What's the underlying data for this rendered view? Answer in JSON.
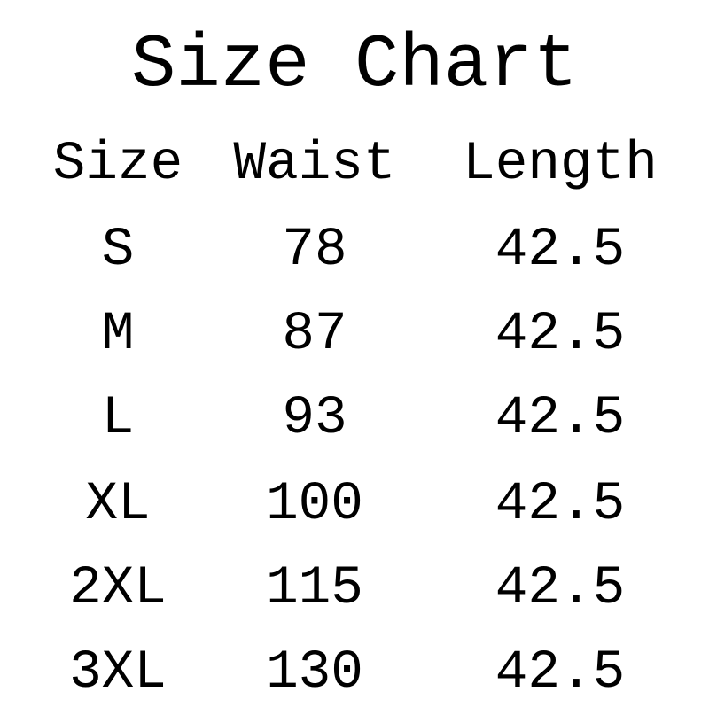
{
  "title": "Size Chart",
  "table": {
    "headers": [
      "Size",
      "Waist",
      "Length"
    ],
    "rows": [
      [
        "S",
        "78",
        "42.5"
      ],
      [
        "M",
        "87",
        "42.5"
      ],
      [
        "L",
        "93",
        "42.5"
      ],
      [
        "XL",
        "100",
        "42.5"
      ],
      [
        "2XL",
        "115",
        "42.5"
      ],
      [
        "3XL",
        "130",
        "42.5"
      ]
    ]
  }
}
